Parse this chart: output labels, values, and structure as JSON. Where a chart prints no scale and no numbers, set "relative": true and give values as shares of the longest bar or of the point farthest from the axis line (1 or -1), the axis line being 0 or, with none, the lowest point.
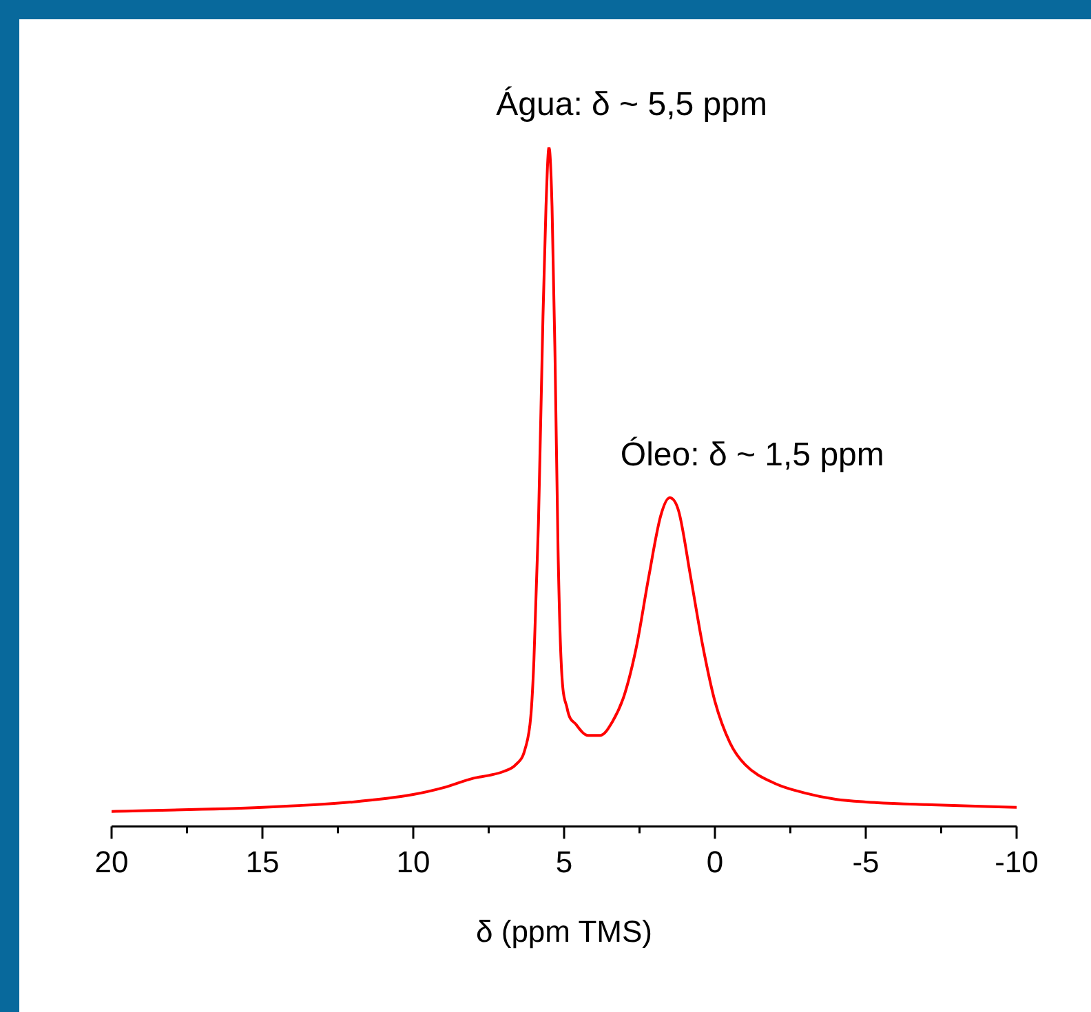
{
  "chart_data": {
    "type": "line",
    "xlabel": "δ (ppm TMS)",
    "relative": true,
    "marker": "none",
    "line_style": "solid",
    "legend": false,
    "xlim": [
      20,
      -10
    ],
    "xticks": [
      20,
      {
        "value": 17.5,
        "label": null
      },
      15,
      {
        "value": 12.5,
        "label": null
      },
      10,
      {
        "value": 7.5,
        "label": null
      },
      5,
      {
        "value": 2.5,
        "label": null
      },
      0,
      {
        "value": -2.5,
        "label": null
      },
      -5,
      {
        "value": -7.5,
        "label": null
      },
      -10
    ],
    "annotations": [
      {
        "text": "Água: δ ~ 5,5 ppm",
        "x": 5.5,
        "y": 1
      },
      {
        "text": "Óleo: δ ~ 1,5 ppm",
        "x": 1.5,
        "y": 0.484
      }
    ],
    "series": [
      {
        "color": "#ff0000",
        "x": [
          20,
          15,
          12,
          10,
          9,
          8,
          7.5,
          7,
          6.6,
          6.3,
          6.1,
          6.0,
          5.85,
          5.7,
          5.6,
          5.5,
          5.4,
          5.3,
          5.2,
          5.1,
          4.9,
          4.6,
          4.2,
          3.8,
          3.4,
          3.0,
          2.6,
          2.2,
          1.8,
          1.5,
          1.2,
          0.8,
          0.4,
          0,
          -0.5,
          -1,
          -2,
          -3,
          -4,
          -5,
          -7,
          -10
        ],
        "values": [
          0.022,
          0.028,
          0.036,
          0.047,
          0.057,
          0.071,
          0.075,
          0.081,
          0.091,
          0.113,
          0.164,
          0.245,
          0.447,
          0.751,
          0.913,
          1,
          0.913,
          0.69,
          0.407,
          0.245,
          0.174,
          0.15,
          0.134,
          0.134,
          0.154,
          0.194,
          0.265,
          0.366,
          0.457,
          0.484,
          0.464,
          0.366,
          0.265,
          0.184,
          0.123,
          0.091,
          0.063,
          0.049,
          0.04,
          0.036,
          0.032,
          0.028
        ]
      }
    ]
  }
}
